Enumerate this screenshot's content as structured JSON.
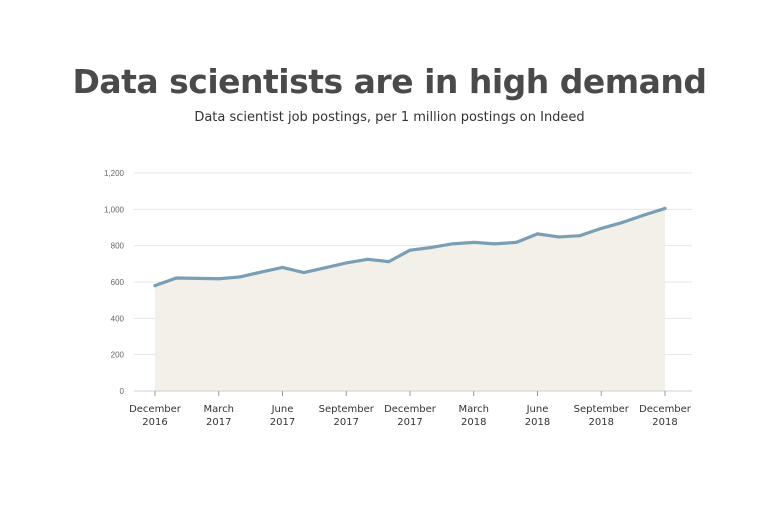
{
  "chart_data": {
    "type": "area",
    "title": "Data scientists are in high demand",
    "subtitle": "Data scientist job postings, per 1 million postings on Indeed",
    "xlabel": "",
    "ylabel": "",
    "ylim": [
      0,
      1200
    ],
    "y_ticks": [
      0,
      200,
      400,
      600,
      800,
      1000,
      1200
    ],
    "y_tick_labels": [
      "0",
      "200",
      "400",
      "600",
      "800",
      "1,000",
      "1,200"
    ],
    "x_tick_labels": [
      {
        "line1": "December",
        "line2": "2016"
      },
      {
        "line1": "March",
        "line2": "2017"
      },
      {
        "line1": "June",
        "line2": "2017"
      },
      {
        "line1": "September",
        "line2": "2017"
      },
      {
        "line1": "December",
        "line2": "2017"
      },
      {
        "line1": "March",
        "line2": "2018"
      },
      {
        "line1": "June",
        "line2": "2018"
      },
      {
        "line1": "September",
        "line2": "2018"
      },
      {
        "line1": "December",
        "line2": "2018"
      }
    ],
    "x": [
      "2016-12",
      "2017-01",
      "2017-02",
      "2017-03",
      "2017-04",
      "2017-05",
      "2017-06",
      "2017-07",
      "2017-08",
      "2017-09",
      "2017-10",
      "2017-11",
      "2017-12",
      "2018-01",
      "2018-02",
      "2018-03",
      "2018-04",
      "2018-05",
      "2018-06",
      "2018-07",
      "2018-08",
      "2018-09",
      "2018-10",
      "2018-11",
      "2018-12"
    ],
    "values": [
      580,
      622,
      620,
      618,
      628,
      655,
      680,
      652,
      678,
      705,
      725,
      712,
      775,
      790,
      810,
      818,
      810,
      818,
      865,
      848,
      855,
      895,
      928,
      968,
      1005
    ],
    "grid": true,
    "line_color": "#7a9fb5",
    "fill_color": "#f3f0ea",
    "grid_color": "#e6e6e6"
  }
}
